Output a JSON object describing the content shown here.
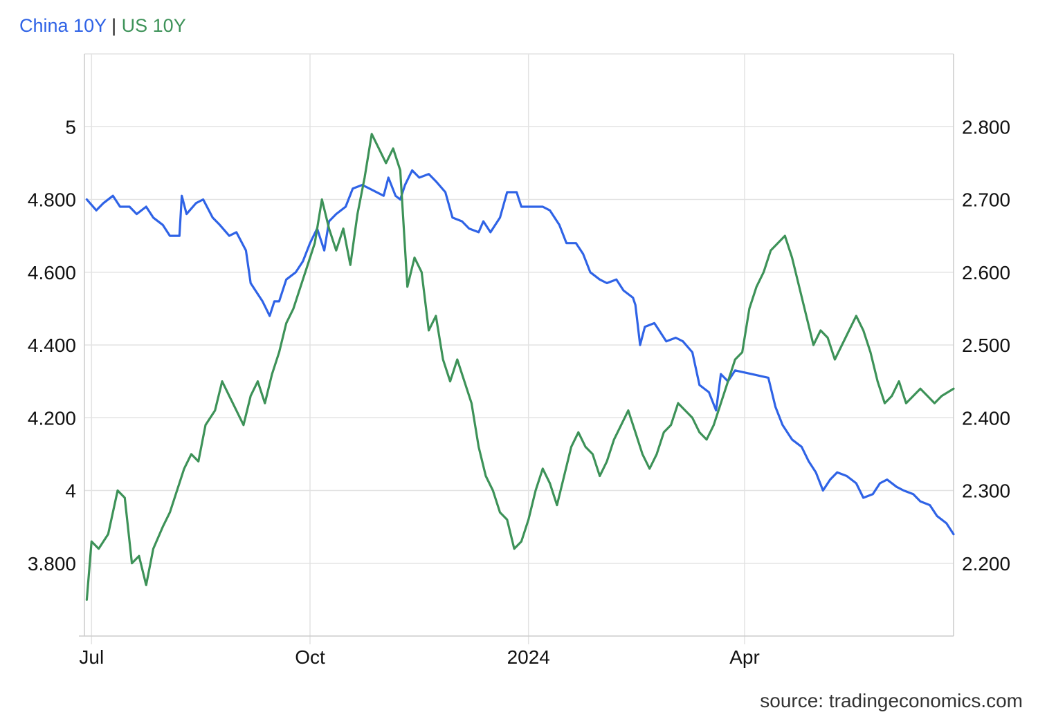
{
  "legend": {
    "series1": "China 10Y",
    "separator": "|",
    "series2": "US 10Y"
  },
  "source": "source: tradingeconomics.com",
  "colors": {
    "china": "#2f63e6",
    "us": "#3d9258",
    "separator": "#222222",
    "grid": "#e3e3e3"
  },
  "chart_data": {
    "type": "line",
    "title": "",
    "xlabel": "",
    "ylabel": "",
    "grid": true,
    "x_range": [
      "2023-06-28",
      "2024-06-28"
    ],
    "x_ticks": [
      {
        "date": "2023-07-01",
        "label": "Jul"
      },
      {
        "date": "2023-10-01",
        "label": "Oct"
      },
      {
        "date": "2024-01-01",
        "label": "2024"
      },
      {
        "date": "2024-04-01",
        "label": "Apr"
      }
    ],
    "y_left": {
      "range": [
        3.6,
        5.2
      ],
      "ticks": [
        {
          "value": 3.8,
          "label": "3.800"
        },
        {
          "value": 4.0,
          "label": "4"
        },
        {
          "value": 4.2,
          "label": "4.200"
        },
        {
          "value": 4.4,
          "label": "4.400"
        },
        {
          "value": 4.6,
          "label": "4.600"
        },
        {
          "value": 4.8,
          "label": "4.800"
        },
        {
          "value": 5.0,
          "label": "5"
        }
      ]
    },
    "y_right": {
      "range": [
        2.1,
        2.9
      ],
      "ticks": [
        {
          "value": 2.2,
          "label": "2.200"
        },
        {
          "value": 2.3,
          "label": "2.300"
        },
        {
          "value": 2.4,
          "label": "2.400"
        },
        {
          "value": 2.5,
          "label": "2.500"
        },
        {
          "value": 2.6,
          "label": "2.600"
        },
        {
          "value": 2.7,
          "label": "2.700"
        },
        {
          "value": 2.8,
          "label": "2.800"
        }
      ]
    },
    "series": [
      {
        "name": "China 10Y",
        "axis": "left",
        "color": "#2f63e6",
        "points": [
          [
            "2023-06-29",
            4.8
          ],
          [
            "2023-07-03",
            4.77
          ],
          [
            "2023-07-06",
            4.79
          ],
          [
            "2023-07-10",
            4.81
          ],
          [
            "2023-07-13",
            4.78
          ],
          [
            "2023-07-17",
            4.78
          ],
          [
            "2023-07-20",
            4.76
          ],
          [
            "2023-07-24",
            4.78
          ],
          [
            "2023-07-27",
            4.75
          ],
          [
            "2023-07-31",
            4.73
          ],
          [
            "2023-08-03",
            4.7
          ],
          [
            "2023-08-07",
            4.7
          ],
          [
            "2023-08-08",
            4.81
          ],
          [
            "2023-08-10",
            4.76
          ],
          [
            "2023-08-14",
            4.79
          ],
          [
            "2023-08-17",
            4.8
          ],
          [
            "2023-08-21",
            4.75
          ],
          [
            "2023-08-24",
            4.73
          ],
          [
            "2023-08-28",
            4.7
          ],
          [
            "2023-08-31",
            4.71
          ],
          [
            "2023-09-04",
            4.66
          ],
          [
            "2023-09-06",
            4.57
          ],
          [
            "2023-09-08",
            4.55
          ],
          [
            "2023-09-11",
            4.52
          ],
          [
            "2023-09-14",
            4.48
          ],
          [
            "2023-09-16",
            4.52
          ],
          [
            "2023-09-18",
            4.52
          ],
          [
            "2023-09-21",
            4.58
          ],
          [
            "2023-09-25",
            4.6
          ],
          [
            "2023-09-28",
            4.63
          ],
          [
            "2023-10-01",
            4.68
          ],
          [
            "2023-10-04",
            4.72
          ],
          [
            "2023-10-07",
            4.66
          ],
          [
            "2023-10-09",
            4.74
          ],
          [
            "2023-10-12",
            4.76
          ],
          [
            "2023-10-16",
            4.78
          ],
          [
            "2023-10-19",
            4.83
          ],
          [
            "2023-10-23",
            4.84
          ],
          [
            "2023-10-26",
            4.83
          ],
          [
            "2023-11-01",
            4.81
          ],
          [
            "2023-11-03",
            4.86
          ],
          [
            "2023-11-06",
            4.81
          ],
          [
            "2023-11-08",
            4.8
          ],
          [
            "2023-11-10",
            4.84
          ],
          [
            "2023-11-13",
            4.88
          ],
          [
            "2023-11-16",
            4.86
          ],
          [
            "2023-11-20",
            4.87
          ],
          [
            "2023-11-23",
            4.85
          ],
          [
            "2023-11-27",
            4.82
          ],
          [
            "2023-11-30",
            4.75
          ],
          [
            "2023-12-04",
            4.74
          ],
          [
            "2023-12-07",
            4.72
          ],
          [
            "2023-12-11",
            4.71
          ],
          [
            "2023-12-13",
            4.74
          ],
          [
            "2023-12-16",
            4.71
          ],
          [
            "2023-12-20",
            4.75
          ],
          [
            "2023-12-23",
            4.82
          ],
          [
            "2023-12-27",
            4.82
          ],
          [
            "2023-12-29",
            4.78
          ],
          [
            "2024-01-03",
            4.78
          ],
          [
            "2024-01-07",
            4.78
          ],
          [
            "2024-01-10",
            4.77
          ],
          [
            "2024-01-14",
            4.73
          ],
          [
            "2024-01-17",
            4.68
          ],
          [
            "2024-01-21",
            4.68
          ],
          [
            "2024-01-24",
            4.65
          ],
          [
            "2024-01-27",
            4.6
          ],
          [
            "2024-01-31",
            4.58
          ],
          [
            "2024-02-03",
            4.57
          ],
          [
            "2024-02-07",
            4.58
          ],
          [
            "2024-02-10",
            4.55
          ],
          [
            "2024-02-14",
            4.53
          ],
          [
            "2024-02-15",
            4.51
          ],
          [
            "2024-02-17",
            4.4
          ],
          [
            "2024-02-19",
            4.45
          ],
          [
            "2024-02-23",
            4.46
          ],
          [
            "2024-02-25",
            4.44
          ],
          [
            "2024-02-28",
            4.41
          ],
          [
            "2024-03-03",
            4.42
          ],
          [
            "2024-03-06",
            4.41
          ],
          [
            "2024-03-10",
            4.38
          ],
          [
            "2024-03-13",
            4.29
          ],
          [
            "2024-03-17",
            4.27
          ],
          [
            "2024-03-20",
            4.22
          ],
          [
            "2024-03-22",
            4.32
          ],
          [
            "2024-03-25",
            4.3
          ],
          [
            "2024-03-28",
            4.33
          ],
          [
            "2024-04-04",
            4.32
          ],
          [
            "2024-04-11",
            4.31
          ],
          [
            "2024-04-14",
            4.23
          ],
          [
            "2024-04-17",
            4.18
          ],
          [
            "2024-04-21",
            4.14
          ],
          [
            "2024-04-25",
            4.12
          ],
          [
            "2024-04-28",
            4.08
          ],
          [
            "2024-05-01",
            4.05
          ],
          [
            "2024-05-04",
            4.0
          ],
          [
            "2024-05-07",
            4.03
          ],
          [
            "2024-05-10",
            4.05
          ],
          [
            "2024-05-14",
            4.04
          ],
          [
            "2024-05-18",
            4.02
          ],
          [
            "2024-05-21",
            3.98
          ],
          [
            "2024-05-25",
            3.99
          ],
          [
            "2024-05-28",
            4.02
          ],
          [
            "2024-05-31",
            4.03
          ],
          [
            "2024-06-04",
            4.01
          ],
          [
            "2024-06-07",
            4.0
          ],
          [
            "2024-06-11",
            3.99
          ],
          [
            "2024-06-14",
            3.97
          ],
          [
            "2024-06-18",
            3.96
          ],
          [
            "2024-06-21",
            3.93
          ],
          [
            "2024-06-25",
            3.91
          ],
          [
            "2024-06-28",
            3.88
          ]
        ]
      },
      {
        "name": "US 10Y",
        "axis": "right",
        "color": "#3d9258",
        "points": [
          [
            "2023-06-29",
            2.15
          ],
          [
            "2023-07-01",
            2.23
          ],
          [
            "2023-07-04",
            2.22
          ],
          [
            "2023-07-08",
            2.24
          ],
          [
            "2023-07-12",
            2.3
          ],
          [
            "2023-07-15",
            2.29
          ],
          [
            "2023-07-18",
            2.2
          ],
          [
            "2023-07-21",
            2.21
          ],
          [
            "2023-07-24",
            2.17
          ],
          [
            "2023-07-27",
            2.22
          ],
          [
            "2023-07-31",
            2.25
          ],
          [
            "2023-08-03",
            2.27
          ],
          [
            "2023-08-06",
            2.3
          ],
          [
            "2023-08-09",
            2.33
          ],
          [
            "2023-08-12",
            2.35
          ],
          [
            "2023-08-15",
            2.34
          ],
          [
            "2023-08-18",
            2.39
          ],
          [
            "2023-08-22",
            2.41
          ],
          [
            "2023-08-25",
            2.45
          ],
          [
            "2023-08-28",
            2.43
          ],
          [
            "2023-08-31",
            2.41
          ],
          [
            "2023-09-03",
            2.39
          ],
          [
            "2023-09-06",
            2.43
          ],
          [
            "2023-09-09",
            2.45
          ],
          [
            "2023-09-12",
            2.42
          ],
          [
            "2023-09-15",
            2.46
          ],
          [
            "2023-09-18",
            2.49
          ],
          [
            "2023-09-21",
            2.53
          ],
          [
            "2023-09-24",
            2.55
          ],
          [
            "2023-09-27",
            2.58
          ],
          [
            "2023-09-30",
            2.61
          ],
          [
            "2023-10-03",
            2.64
          ],
          [
            "2023-10-06",
            2.7
          ],
          [
            "2023-10-09",
            2.66
          ],
          [
            "2023-10-12",
            2.63
          ],
          [
            "2023-10-15",
            2.66
          ],
          [
            "2023-10-18",
            2.61
          ],
          [
            "2023-10-21",
            2.68
          ],
          [
            "2023-10-24",
            2.73
          ],
          [
            "2023-10-27",
            2.79
          ],
          [
            "2023-10-30",
            2.77
          ],
          [
            "2023-11-02",
            2.75
          ],
          [
            "2023-11-05",
            2.77
          ],
          [
            "2023-11-08",
            2.74
          ],
          [
            "2023-11-11",
            2.58
          ],
          [
            "2023-11-14",
            2.62
          ],
          [
            "2023-11-17",
            2.6
          ],
          [
            "2023-11-20",
            2.52
          ],
          [
            "2023-11-23",
            2.54
          ],
          [
            "2023-11-26",
            2.48
          ],
          [
            "2023-11-29",
            2.45
          ],
          [
            "2023-12-02",
            2.48
          ],
          [
            "2023-12-05",
            2.45
          ],
          [
            "2023-12-08",
            2.42
          ],
          [
            "2023-12-11",
            2.36
          ],
          [
            "2023-12-14",
            2.32
          ],
          [
            "2023-12-17",
            2.3
          ],
          [
            "2023-12-20",
            2.27
          ],
          [
            "2023-12-23",
            2.26
          ],
          [
            "2023-12-26",
            2.22
          ],
          [
            "2023-12-29",
            2.23
          ],
          [
            "2024-01-01",
            2.26
          ],
          [
            "2024-01-04",
            2.3
          ],
          [
            "2024-01-07",
            2.33
          ],
          [
            "2024-01-10",
            2.31
          ],
          [
            "2024-01-13",
            2.28
          ],
          [
            "2024-01-16",
            2.32
          ],
          [
            "2024-01-19",
            2.36
          ],
          [
            "2024-01-22",
            2.38
          ],
          [
            "2024-01-25",
            2.36
          ],
          [
            "2024-01-28",
            2.35
          ],
          [
            "2024-01-31",
            2.32
          ],
          [
            "2024-02-03",
            2.34
          ],
          [
            "2024-02-06",
            2.37
          ],
          [
            "2024-02-09",
            2.39
          ],
          [
            "2024-02-12",
            2.41
          ],
          [
            "2024-02-15",
            2.38
          ],
          [
            "2024-02-18",
            2.35
          ],
          [
            "2024-02-21",
            2.33
          ],
          [
            "2024-02-24",
            2.35
          ],
          [
            "2024-02-27",
            2.38
          ],
          [
            "2024-03-01",
            2.39
          ],
          [
            "2024-03-04",
            2.42
          ],
          [
            "2024-03-07",
            2.41
          ],
          [
            "2024-03-10",
            2.4
          ],
          [
            "2024-03-13",
            2.38
          ],
          [
            "2024-03-16",
            2.37
          ],
          [
            "2024-03-19",
            2.39
          ],
          [
            "2024-03-22",
            2.42
          ],
          [
            "2024-03-25",
            2.45
          ],
          [
            "2024-03-28",
            2.48
          ],
          [
            "2024-03-31",
            2.49
          ],
          [
            "2024-04-03",
            2.55
          ],
          [
            "2024-04-06",
            2.58
          ],
          [
            "2024-04-09",
            2.6
          ],
          [
            "2024-04-12",
            2.63
          ],
          [
            "2024-04-15",
            2.64
          ],
          [
            "2024-04-18",
            2.65
          ],
          [
            "2024-04-21",
            2.62
          ],
          [
            "2024-04-24",
            2.58
          ],
          [
            "2024-04-27",
            2.54
          ],
          [
            "2024-04-30",
            2.5
          ],
          [
            "2024-05-03",
            2.52
          ],
          [
            "2024-05-06",
            2.51
          ],
          [
            "2024-05-09",
            2.48
          ],
          [
            "2024-05-12",
            2.5
          ],
          [
            "2024-05-15",
            2.52
          ],
          [
            "2024-05-18",
            2.54
          ],
          [
            "2024-05-21",
            2.52
          ],
          [
            "2024-05-24",
            2.49
          ],
          [
            "2024-05-27",
            2.45
          ],
          [
            "2024-05-30",
            2.42
          ],
          [
            "2024-06-02",
            2.43
          ],
          [
            "2024-06-05",
            2.45
          ],
          [
            "2024-06-08",
            2.42
          ],
          [
            "2024-06-11",
            2.43
          ],
          [
            "2024-06-14",
            2.44
          ],
          [
            "2024-06-17",
            2.43
          ],
          [
            "2024-06-20",
            2.42
          ],
          [
            "2024-06-23",
            2.43
          ],
          [
            "2024-06-28",
            2.44
          ]
        ]
      }
    ]
  }
}
